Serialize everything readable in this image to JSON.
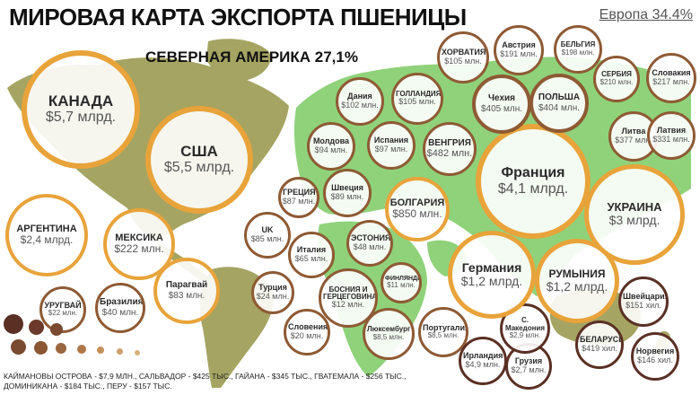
{
  "title": "МИРОВАЯ КАРТА ЭКСПОРТА ПШЕНИЦЫ",
  "europe_label": "Европа 34.4%",
  "north_america_label": "СЕВЕРНАЯ АМЕРИКА 27,1%",
  "footer": "КАЙМАНОВЫ ОСТРОВА - $7,9 МЛН., САЛЬВАДОР - $425 ТЫС., ГАЙАНА - $345 ТЫС., ГВАТЕМАЛА - $256 ТЫС., ДОМИНИКАНА - $184 ТЫС., ПЕРУ - $157 ТЫС.",
  "colors": {
    "gold": "#e8a33a",
    "brown": "#8e5a34",
    "dark_brown": "#5a3024",
    "map_green": "#8fd27a",
    "map_olive": "#a5a462"
  },
  "countries": [
    {
      "name": "КАНАДА",
      "value": "$5,7 млрд."
    },
    {
      "name": "США",
      "value": "$5,5 млрд."
    },
    {
      "name": "АРГЕНТИНА",
      "value": "$2,4 млрд."
    },
    {
      "name": "МЕКСИКА",
      "value": "$222 млн."
    },
    {
      "name": "UK",
      "value": "$85 млн."
    },
    {
      "name": "Парагвай",
      "value": "$83 млн."
    },
    {
      "name": "УРУГВАЙ",
      "value": "$22 млн."
    },
    {
      "name": "Бразилия",
      "value": "$40 млн."
    },
    {
      "name": "ГРЕЦИЯ",
      "value": "$87 млн."
    },
    {
      "name": "Италия",
      "value": "$65 млн."
    },
    {
      "name": "Турция",
      "value": "$24 млн."
    },
    {
      "name": "Словения",
      "value": "$20 млн."
    },
    {
      "name": "БОСНИЯ И ГЕРЦЕГОВИНА",
      "value": "$12 млн."
    },
    {
      "name": "ЭСТОНИЯ",
      "value": "$48 млн."
    },
    {
      "name": "Швеция",
      "value": "$89 млн."
    },
    {
      "name": "БОЛГАРИЯ",
      "value": "$850 млн."
    },
    {
      "name": "ФИНЛЯНДИЯ",
      "value": "$11 млн."
    },
    {
      "name": "Португалия",
      "value": "$8,5 млн."
    },
    {
      "name": "Люксембург",
      "value": "$8,5 млн."
    },
    {
      "name": "Ирландия",
      "value": "$4,9 млн."
    },
    {
      "name": "Грузия",
      "value": "$2,7 млн."
    },
    {
      "name": "С. Македония",
      "value": "$2,9 млн."
    },
    {
      "name": "Германия",
      "value": "$1,2 млрд."
    },
    {
      "name": "РУМЫНИЯ",
      "value": "$1,2 млрд."
    },
    {
      "name": "Швейцария",
      "value": "$151 хил."
    },
    {
      "name": "БЕЛАРУСЬ",
      "value": "$419 хил."
    },
    {
      "name": "Норвегия",
      "value": "$146 хил."
    },
    {
      "name": "УКРАИНА",
      "value": "$3 млрд."
    },
    {
      "name": "Франция",
      "value": "$4,1 млрд."
    },
    {
      "name": "Молдова",
      "value": "$94 млн."
    },
    {
      "name": "Испания",
      "value": "$97 млн."
    },
    {
      "name": "ВЕНГРИЯ",
      "value": "$482 млн."
    },
    {
      "name": "Дания",
      "value": "$102 млн."
    },
    {
      "name": "ГОЛЛАНДИЯ",
      "value": "$105 млн."
    },
    {
      "name": "ХОРВАТИЯ",
      "value": "$105 млн."
    },
    {
      "name": "Австрия",
      "value": "$191 млн."
    },
    {
      "name": "БЕЛЬГИЯ",
      "value": "$198 млн."
    },
    {
      "name": "Чехия",
      "value": "$405 млн."
    },
    {
      "name": "ПОЛЬША",
      "value": "$404 млн."
    },
    {
      "name": "СЕРБИЯ",
      "value": "$210 млн."
    },
    {
      "name": "Словакия",
      "value": "$217 млн."
    },
    {
      "name": "Литва",
      "value": "$377 млн."
    },
    {
      "name": "Латвия",
      "value": "$331 млн."
    }
  ]
}
